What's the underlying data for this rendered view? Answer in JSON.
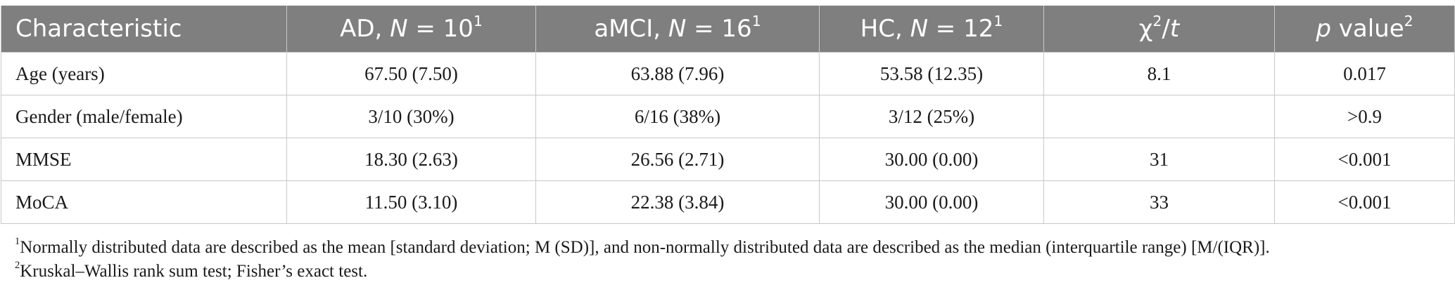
{
  "table": {
    "headers": [
      {
        "pre": "Characteristic",
        "ital": "",
        "post": "",
        "sup": ""
      },
      {
        "pre": "AD, ",
        "ital": "N",
        "post": " = 10",
        "sup": "1"
      },
      {
        "pre": "aMCI, ",
        "ital": "N",
        "post": " = 16",
        "sup": "1"
      },
      {
        "pre": "HC, ",
        "ital": "N",
        "post": " = 12",
        "sup": "1"
      },
      {
        "pre": "χ",
        "sup": "2",
        "post": "/",
        "ital": "t"
      },
      {
        "pre": "",
        "ital": "p",
        "post": " value",
        "sup": "2"
      }
    ],
    "rows": [
      [
        "Age (years)",
        "67.50 (7.50)",
        "63.88 (7.96)",
        "53.58 (12.35)",
        "8.1",
        "0.017"
      ],
      [
        "Gender (male/female)",
        "3/10 (30%)",
        "6/16 (38%)",
        "3/12 (25%)",
        "",
        ">0.9"
      ],
      [
        "MMSE",
        "18.30 (2.63)",
        "26.56 (2.71)",
        "30.00 (0.00)",
        "31",
        "<0.001"
      ],
      [
        "MoCA",
        "11.50 (3.10)",
        "22.38 (3.84)",
        "30.00 (0.00)",
        "33",
        "<0.001"
      ]
    ]
  },
  "footnotes": [
    {
      "mark": "1",
      "text": "Normally distributed data are described as the mean [standard deviation; M (SD)], and non-normally distributed data are described as the median (interquartile range) [M/(IQR)]."
    },
    {
      "mark": "2",
      "text": "Kruskal–Wallis rank sum test; Fisher’s exact test."
    }
  ],
  "colors": {
    "header_bg": "#7f7f7f",
    "header_text": "#ffffff",
    "grid": "#c8c8c8"
  }
}
